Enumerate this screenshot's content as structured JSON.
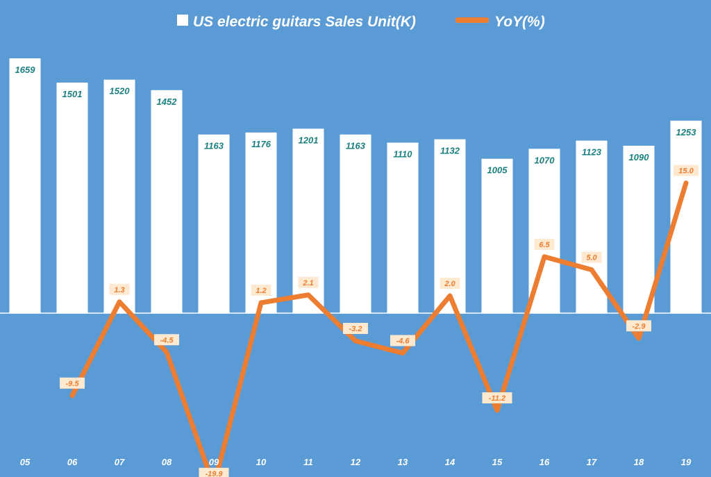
{
  "chart_data": {
    "type": "bar+line",
    "categories": [
      "05",
      "06",
      "07",
      "08",
      "09",
      "10",
      "11",
      "12",
      "13",
      "14",
      "15",
      "16",
      "17",
      "18",
      "19"
    ],
    "series": [
      {
        "name": "US electric guitars Sales Unit(K)",
        "kind": "bar",
        "values": [
          1659,
          1501,
          1520,
          1452,
          1163,
          1176,
          1201,
          1163,
          1110,
          1132,
          1005,
          1070,
          1123,
          1090,
          1253
        ],
        "labels": [
          "1659",
          "1501",
          "1520",
          "1452",
          "1163",
          "1176",
          "1201",
          "1163",
          "1110",
          "1132",
          "1005",
          "1070",
          "1123",
          "1090",
          "1253"
        ]
      },
      {
        "name": "YoY(%)",
        "kind": "line",
        "values": [
          null,
          -9.5,
          1.3,
          -4.5,
          -19.9,
          1.2,
          2.1,
          -3.2,
          -4.6,
          2.0,
          -11.2,
          6.5,
          5.0,
          -2.9,
          15.0
        ],
        "labels": [
          "",
          "-9.5",
          "1.3",
          "-4.5",
          "-19.9",
          "1.2",
          "2.1",
          "-3.2",
          "-4.6",
          "2.0",
          "-11.2",
          "6.5",
          "5.0",
          "-2.9",
          "15.0"
        ]
      }
    ],
    "legend": [
      "US electric guitars Sales Unit(K)",
      "YoY(%)"
    ],
    "legend_position": "top-center",
    "bar_ylim": [
      0,
      1659
    ],
    "line_ylim": [
      -20,
      15
    ],
    "grid": false
  },
  "colors": {
    "background": "#5b9bd5",
    "bar": "#ffffff",
    "line": "#ed7d31",
    "bar_label": "#1a7f80",
    "line_label_bg": "#fde9cf",
    "axis": "#ffffff"
  }
}
